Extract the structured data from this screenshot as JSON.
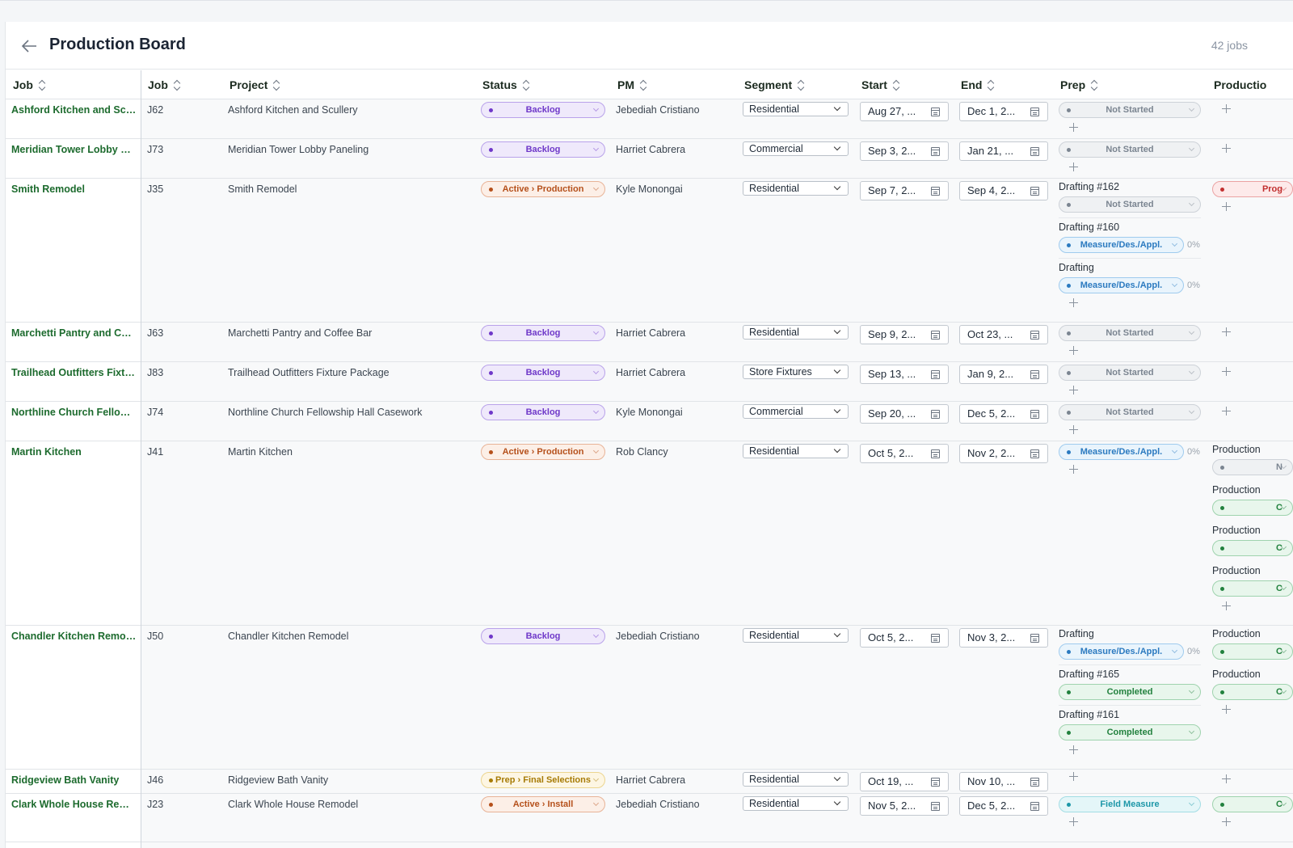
{
  "header": {
    "title": "Production Board",
    "count": "42 jobs"
  },
  "columns": {
    "job_frozen": "Job",
    "job": "Job",
    "project": "Project",
    "status": "Status",
    "pm": "PM",
    "segment": "Segment",
    "start": "Start",
    "end": "End",
    "prep": "Prep",
    "production": "Productio"
  },
  "rows": [
    {
      "name": "Ashford Kitchen and Scul...",
      "id": "J62",
      "project": "Ashford Kitchen and Scullery",
      "status": "Backlog",
      "status_kind": "backlog",
      "pm": "Jebediah Cristiano",
      "segment": "Residential",
      "start": "Aug 27, ...",
      "end": "Dec 1, 2...",
      "height": 49,
      "prep": [
        {
          "label": "",
          "status": "Not Started",
          "kind": "notstarted"
        }
      ],
      "prod": []
    },
    {
      "name": "Meridian Tower Lobby Pa...",
      "id": "J73",
      "project": "Meridian Tower Lobby Paneling",
      "status": "Backlog",
      "status_kind": "backlog",
      "pm": "Harriet Cabrera",
      "segment": "Commercial",
      "start": "Sep 3, 2...",
      "end": "Jan 21, ...",
      "height": 49,
      "prep": [
        {
          "label": "",
          "status": "Not Started",
          "kind": "notstarted"
        }
      ],
      "prod": []
    },
    {
      "name": "Smith Remodel",
      "id": "J35",
      "project": "Smith Remodel",
      "status": "Active › Production",
      "status_kind": "active",
      "pm": "Kyle Monongai",
      "segment": "Residential",
      "start": "Sep 7, 2...",
      "end": "Sep 4, 2...",
      "height": 178,
      "prep": [
        {
          "label": "Drafting #162",
          "status": "Not Started",
          "kind": "notstarted"
        },
        {
          "label": "Drafting #160",
          "status": "Measure/Des./Appl.",
          "kind": "measure",
          "pct": "0%"
        },
        {
          "label": "Drafting",
          "status": "Measure/Des./Appl.",
          "kind": "measure",
          "pct": "0%"
        }
      ],
      "prod": [
        {
          "label": "",
          "status": "Prog",
          "kind": "progress"
        }
      ]
    },
    {
      "name": "Marchetti Pantry and Coff...",
      "id": "J63",
      "project": "Marchetti Pantry and Coffee Bar",
      "status": "Backlog",
      "status_kind": "backlog",
      "pm": "Harriet Cabrera",
      "segment": "Residential",
      "start": "Sep 9, 2...",
      "end": "Oct 23, ...",
      "height": 49,
      "prep": [
        {
          "label": "",
          "status": "Not Started",
          "kind": "notstarted"
        }
      ],
      "prod": []
    },
    {
      "name": "Trailhead Outfitters Fixtu...",
      "id": "J83",
      "project": "Trailhead Outfitters Fixture Package",
      "status": "Backlog",
      "status_kind": "backlog",
      "pm": "Harriet Cabrera",
      "segment": "Store Fixtures",
      "start": "Sep 13, ...",
      "end": "Jan 9, 2...",
      "height": 49,
      "prep": [
        {
          "label": "",
          "status": "Not Started",
          "kind": "notstarted"
        }
      ],
      "prod": []
    },
    {
      "name": "Northline Church Fellows...",
      "id": "J74",
      "project": "Northline Church Fellowship Hall Casework",
      "status": "Backlog",
      "status_kind": "backlog",
      "pm": "Kyle Monongai",
      "segment": "Commercial",
      "start": "Sep 20, ...",
      "end": "Dec 5, 2...",
      "height": 49,
      "prep": [
        {
          "label": "",
          "status": "Not Started",
          "kind": "notstarted"
        }
      ],
      "prod": []
    },
    {
      "name": "Martin Kitchen",
      "id": "J41",
      "project": "Martin Kitchen",
      "status": "Active › Production",
      "status_kind": "active",
      "pm": "Rob Clancy",
      "segment": "Residential",
      "start": "Oct 5, 2...",
      "end": "Nov 2, 2...",
      "height": 228,
      "prep": [
        {
          "label": "",
          "status": "Measure/Des./Appl.",
          "kind": "measure",
          "pct": "0%"
        }
      ],
      "prod": [
        {
          "label": "Production",
          "status": "N",
          "kind": "notstarted"
        },
        {
          "label": "Production",
          "status": "C",
          "kind": "completed"
        },
        {
          "label": "Production",
          "status": "C",
          "kind": "completed"
        },
        {
          "label": "Production",
          "status": "C",
          "kind": "completed"
        }
      ]
    },
    {
      "name": "Chandler Kitchen Remodel",
      "id": "J50",
      "project": "Chandler Kitchen Remodel",
      "status": "Backlog",
      "status_kind": "backlog",
      "pm": "Jebediah Cristiano",
      "segment": "Residential",
      "start": "Oct 5, 2...",
      "end": "Nov 3, 2...",
      "height": 178,
      "prep": [
        {
          "label": "Drafting",
          "status": "Measure/Des./Appl.",
          "kind": "measure",
          "pct": "0%"
        },
        {
          "label": "Drafting #165",
          "status": "Completed",
          "kind": "completed"
        },
        {
          "label": "Drafting #161",
          "status": "Completed",
          "kind": "completed"
        }
      ],
      "prod": [
        {
          "label": "Production",
          "status": "C",
          "kind": "completed"
        },
        {
          "label": "Production",
          "status": "C",
          "kind": "completed"
        }
      ]
    },
    {
      "name": "Ridgeview Bath Vanity",
      "id": "J46",
      "project": "Ridgeview Bath Vanity",
      "status": "Prep › Final Selections",
      "status_kind": "prep",
      "pm": "Harriet Cabrera",
      "segment": "Residential",
      "start": "Oct 19, ...",
      "end": "Nov 10, ...",
      "height": 30,
      "prep": [],
      "prod": []
    },
    {
      "name": "Clark Whole House Remo...",
      "id": "J23",
      "project": "Clark Whole House Remodel",
      "status": "Active › Install",
      "status_kind": "active",
      "pm": "Jebediah Cristiano",
      "segment": "Residential",
      "start": "Nov 5, 2...",
      "end": "Dec 5, 2...",
      "height": 60,
      "prep": [
        {
          "label": "",
          "status": "Field Measure",
          "kind": "field"
        }
      ],
      "prod": [
        {
          "label": "",
          "status": "C",
          "kind": "completed"
        }
      ]
    }
  ]
}
